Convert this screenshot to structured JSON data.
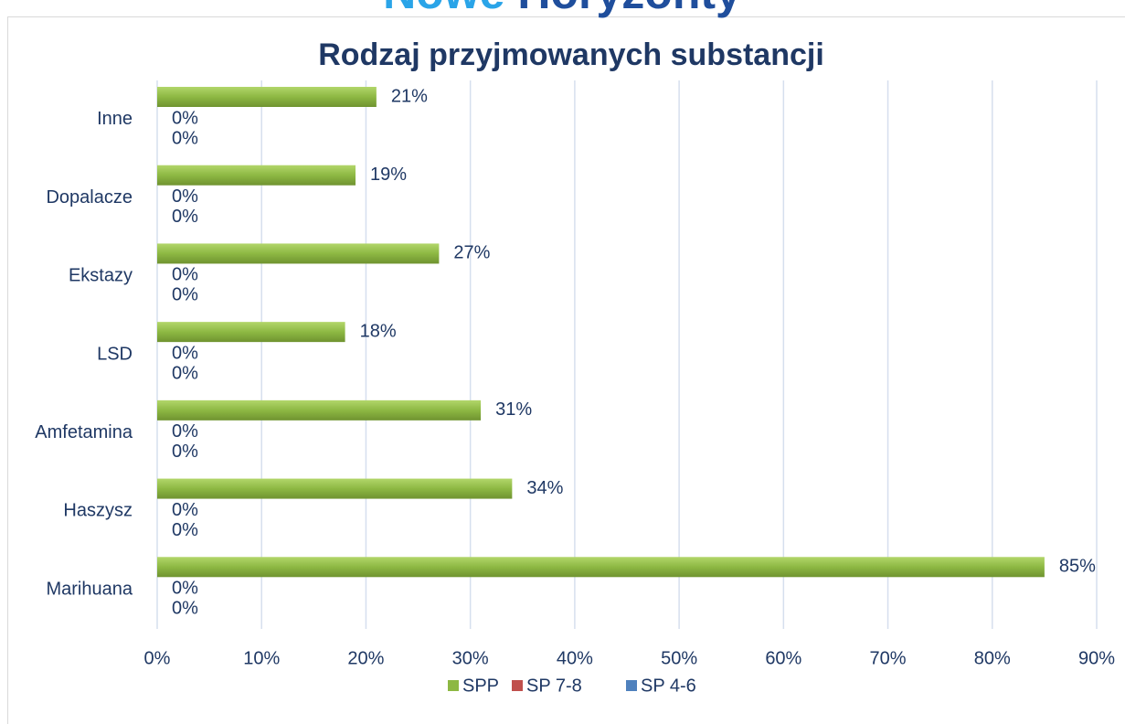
{
  "header": {
    "parts": [
      "Nowe",
      "Horyzonty"
    ]
  },
  "chart_data": {
    "type": "hbar",
    "title": "Rodzaj przyjmowanych substancji",
    "categories": [
      "Marihuana",
      "Haszysz",
      "Amfetamina",
      "LSD",
      "Ekstazy",
      "Dopalacze",
      "Inne"
    ],
    "series": [
      {
        "name": "SPP",
        "color": "#8db843",
        "values": [
          85,
          34,
          31,
          18,
          27,
          19,
          21
        ],
        "value_labels": [
          "85%",
          "34%",
          "31%",
          "18%",
          "27%",
          "19%",
          "21%"
        ]
      },
      {
        "name": "SP 7-8",
        "color": "#c0504d",
        "values": [
          0,
          0,
          0,
          0,
          0,
          0,
          0
        ],
        "value_labels": [
          "0%",
          "0%",
          "0%",
          "0%",
          "0%",
          "0%",
          "0%"
        ]
      },
      {
        "name": "SP 4-6",
        "color": "#4f81bd",
        "values": [
          0,
          0,
          0,
          0,
          0,
          0,
          0
        ],
        "value_labels": [
          "0%",
          "0%",
          "0%",
          "0%",
          "0%",
          "0%",
          "0%"
        ]
      }
    ],
    "xlim": [
      0,
      90
    ],
    "xticks": [
      {
        "value": 0,
        "label": "0%"
      },
      {
        "value": 10,
        "label": "10%"
      },
      {
        "value": 20,
        "label": "20%"
      },
      {
        "value": 30,
        "label": "30%"
      },
      {
        "value": 40,
        "label": "40%"
      },
      {
        "value": 50,
        "label": "50%"
      },
      {
        "value": 60,
        "label": "60%"
      },
      {
        "value": 70,
        "label": "70%"
      },
      {
        "value": 80,
        "label": "80%"
      },
      {
        "value": 90,
        "label": "90%"
      }
    ],
    "grid": true,
    "legend": "bottom"
  }
}
